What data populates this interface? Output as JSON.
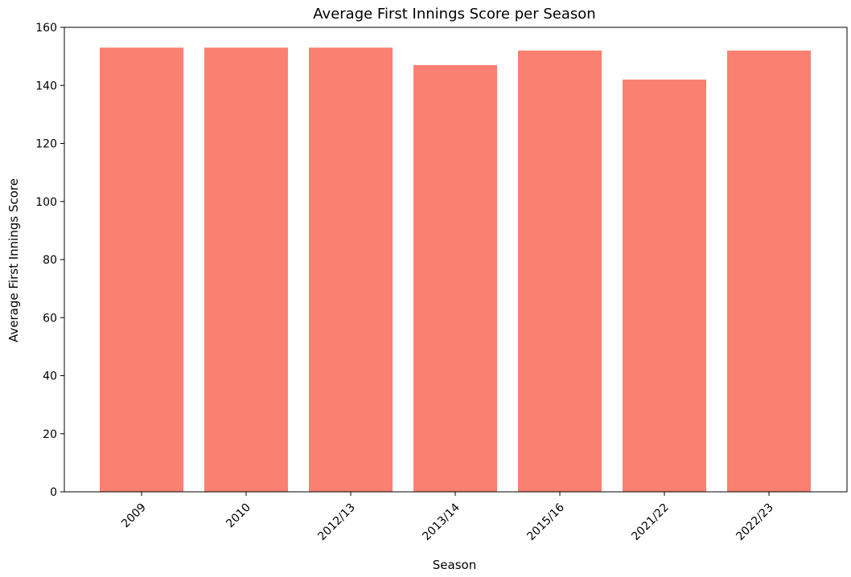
{
  "chart_data": {
    "type": "bar",
    "title": "Average First Innings Score per Season",
    "xlabel": "Season",
    "ylabel": "Average First Innings Score",
    "categories": [
      "2009",
      "2010",
      "2012/13",
      "2013/14",
      "2015/16",
      "2021/22",
      "2022/23"
    ],
    "values": [
      153,
      153,
      153,
      147,
      152,
      142,
      152
    ],
    "ylim": [
      0,
      160
    ],
    "yticks": [
      "0",
      "20",
      "40",
      "60",
      "80",
      "100",
      "120",
      "140",
      "160"
    ],
    "bar_color": "#fa8072",
    "grid": false,
    "legend": "none"
  }
}
